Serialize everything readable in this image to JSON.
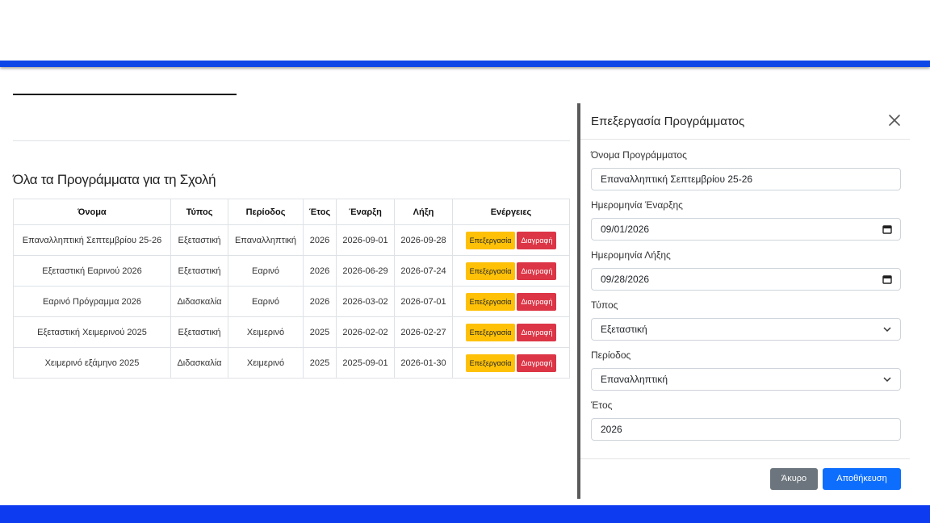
{
  "main": {
    "heading": "Όλα τα Προγράμματα για τη Σχολή",
    "table": {
      "headers": [
        "Όνομα",
        "Τύπος",
        "Περίοδος",
        "Έτος",
        "Έναρξη",
        "Λήξη",
        "Ενέργειες"
      ],
      "rows": [
        {
          "name": "Επαναλληπτική Σεπτεμβρίου 25-26",
          "type": "Εξεταστική",
          "period": "Επαναλληπτική",
          "year": "2026",
          "start": "2026-09-01",
          "end": "2026-09-28"
        },
        {
          "name": "Εξεταστική Εαρινού 2026",
          "type": "Εξεταστική",
          "period": "Εαρινό",
          "year": "2026",
          "start": "2026-06-29",
          "end": "2026-07-24"
        },
        {
          "name": "Εαρινό Πρόγραμμα 2026",
          "type": "Διδασκαλία",
          "period": "Εαρινό",
          "year": "2026",
          "start": "2026-03-02",
          "end": "2026-07-01"
        },
        {
          "name": "Εξεταστική Χειμερινού 2025",
          "type": "Εξεταστική",
          "period": "Χειμερινό",
          "year": "2025",
          "start": "2026-02-02",
          "end": "2026-02-27"
        },
        {
          "name": "Χειμερινό εξάμηνο 2025",
          "type": "Διδασκαλία",
          "period": "Χειμερινό",
          "year": "2025",
          "start": "2025-09-01",
          "end": "2026-01-30"
        }
      ],
      "edit_label": "Επεξεργασία",
      "delete_label": "Διαγραφή"
    }
  },
  "modal": {
    "title": "Επεξεργασία Προγράμματος",
    "name_label": "Όνομα Προγράμματος",
    "name_value": "Επαναλληπτική Σεπτεμβρίου 25-26",
    "start_label": "Ημερομηνία Έναρξης",
    "start_value": "09/01/2026",
    "end_label": "Ημερομηνία Λήξης",
    "end_value": "09/28/2026",
    "type_label": "Τύπος",
    "type_value": "Εξεταστική",
    "period_label": "Περίοδος",
    "period_value": "Επαναλληπτική",
    "year_label": "Έτος",
    "year_value": "2026",
    "cancel_label": "Άκυρο",
    "save_label": "Αποθήκευση"
  },
  "colors": {
    "brand_blue": "#0d47e8",
    "edit_yellow": "#ffc107",
    "delete_red": "#dc3545",
    "save_blue": "#0d6efd",
    "cancel_gray": "#6c757d"
  }
}
